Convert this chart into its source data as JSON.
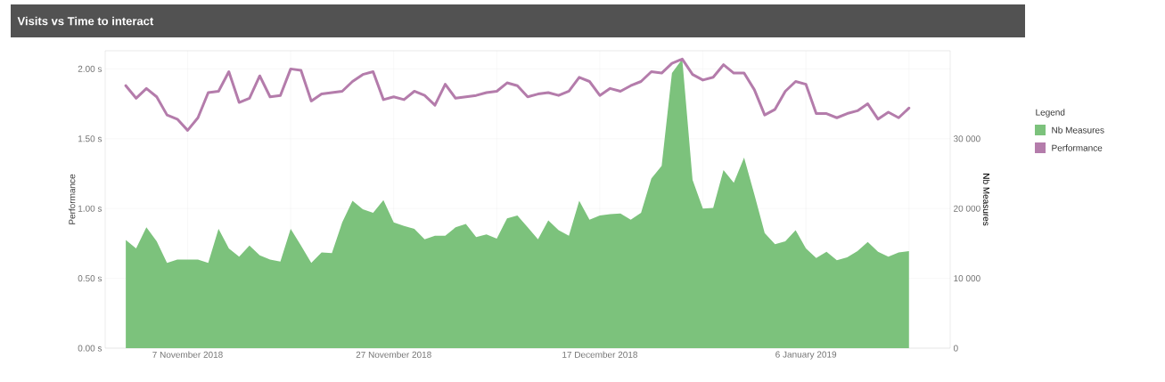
{
  "chart_data": {
    "type": "line",
    "title": "Visits vs Time to interact",
    "x": [
      "2018-11-01",
      "2018-11-02",
      "2018-11-03",
      "2018-11-04",
      "2018-11-05",
      "2018-11-06",
      "2018-11-07",
      "2018-11-08",
      "2018-11-09",
      "2018-11-10",
      "2018-11-11",
      "2018-11-12",
      "2018-11-13",
      "2018-11-14",
      "2018-11-15",
      "2018-11-16",
      "2018-11-17",
      "2018-11-18",
      "2018-11-19",
      "2018-11-20",
      "2018-11-21",
      "2018-11-22",
      "2018-11-23",
      "2018-11-24",
      "2018-11-25",
      "2018-11-26",
      "2018-11-27",
      "2018-11-28",
      "2018-11-29",
      "2018-11-30",
      "2018-12-01",
      "2018-12-02",
      "2018-12-03",
      "2018-12-04",
      "2018-12-05",
      "2018-12-06",
      "2018-12-07",
      "2018-12-08",
      "2018-12-09",
      "2018-12-10",
      "2018-12-11",
      "2018-12-12",
      "2018-12-13",
      "2018-12-14",
      "2018-12-15",
      "2018-12-16",
      "2018-12-17",
      "2018-12-18",
      "2018-12-19",
      "2018-12-20",
      "2018-12-21",
      "2018-12-22",
      "2018-12-23",
      "2018-12-24",
      "2018-12-25",
      "2018-12-26",
      "2018-12-27",
      "2018-12-28",
      "2018-12-29",
      "2018-12-30",
      "2018-12-31",
      "2019-01-01",
      "2019-01-02",
      "2019-01-03",
      "2019-01-04",
      "2019-01-05",
      "2019-01-06",
      "2019-01-07",
      "2019-01-08",
      "2019-01-09",
      "2019-01-10",
      "2019-01-11",
      "2019-01-12",
      "2019-01-13",
      "2019-01-14",
      "2019-01-15",
      "2019-01-16"
    ],
    "series": [
      {
        "name": "Nb Measures",
        "type": "area",
        "axis": "y2",
        "color": "#7cc27c",
        "values": [
          15500,
          14300,
          17300,
          15300,
          12200,
          12700,
          12700,
          12700,
          12200,
          17100,
          14300,
          13100,
          14700,
          13300,
          12700,
          12400,
          17100,
          14700,
          12200,
          13700,
          13600,
          18000,
          21100,
          19900,
          19400,
          21200,
          18000,
          17500,
          17100,
          15600,
          16100,
          16100,
          17300,
          17800,
          15900,
          16300,
          15700,
          18600,
          19000,
          17300,
          15600,
          18300,
          16900,
          16100,
          21100,
          18400,
          19000,
          19200,
          19300,
          18400,
          19400,
          24300,
          26100,
          39400,
          41400,
          24100,
          20000,
          20100,
          25500,
          23700,
          27300,
          22000,
          16500,
          14900,
          15300,
          16900,
          14300,
          12900,
          13800,
          12600,
          13000,
          13900,
          15200,
          13800,
          13100,
          13700,
          13900
        ]
      },
      {
        "name": "Performance",
        "axis": "y",
        "color": "#b47cab",
        "values": [
          1.88,
          1.79,
          1.86,
          1.8,
          1.67,
          1.64,
          1.56,
          1.65,
          1.83,
          1.84,
          1.98,
          1.76,
          1.79,
          1.95,
          1.8,
          1.81,
          2.0,
          1.99,
          1.77,
          1.82,
          1.83,
          1.84,
          1.91,
          1.96,
          1.98,
          1.78,
          1.8,
          1.78,
          1.84,
          1.81,
          1.74,
          1.89,
          1.79,
          1.8,
          1.81,
          1.83,
          1.84,
          1.9,
          1.88,
          1.8,
          1.82,
          1.83,
          1.81,
          1.84,
          1.94,
          1.91,
          1.81,
          1.86,
          1.84,
          1.88,
          1.91,
          1.98,
          1.97,
          2.04,
          2.07,
          1.96,
          1.92,
          1.94,
          2.03,
          1.97,
          1.97,
          1.85,
          1.67,
          1.71,
          1.84,
          1.91,
          1.89,
          1.68,
          1.68,
          1.65,
          1.68,
          1.7,
          1.75,
          1.64,
          1.69,
          1.65,
          1.72
        ]
      }
    ],
    "ylabel": "Performance",
    "y2label": "Nb Measures",
    "legend_title": "Legend",
    "xlim": [
      "2018-10-30",
      "2019-01-20"
    ],
    "xticks": [
      {
        "value": "2018-11-07",
        "label": "7 November 2018"
      },
      {
        "value": "2018-11-17",
        "label": null
      },
      {
        "value": "2018-11-27",
        "label": "27 November 2018"
      },
      {
        "value": "2018-12-07",
        "label": null
      },
      {
        "value": "2018-12-17",
        "label": "17 December 2018"
      },
      {
        "value": "2018-12-27",
        "label": null
      },
      {
        "value": "2019-01-06",
        "label": "6 January 2019"
      },
      {
        "value": "2019-01-16",
        "label": null
      }
    ],
    "ylim": [
      0,
      2.13
    ],
    "yticks": [
      {
        "value": 0,
        "label": "0.00 s"
      },
      {
        "value": 0.5,
        "label": "0.50 s"
      },
      {
        "value": 1,
        "label": "1.00 s"
      },
      {
        "value": 1.5,
        "label": "1.50 s"
      },
      {
        "value": 2,
        "label": "2.00 s"
      }
    ],
    "y2lim": [
      0,
      42600
    ],
    "y2ticks": [
      {
        "value": 0,
        "label": "0"
      },
      {
        "value": 10000,
        "label": "10 000"
      },
      {
        "value": 20000,
        "label": "20 000"
      },
      {
        "value": 30000,
        "label": "30 000"
      }
    ],
    "grid": true,
    "legend": "right"
  }
}
